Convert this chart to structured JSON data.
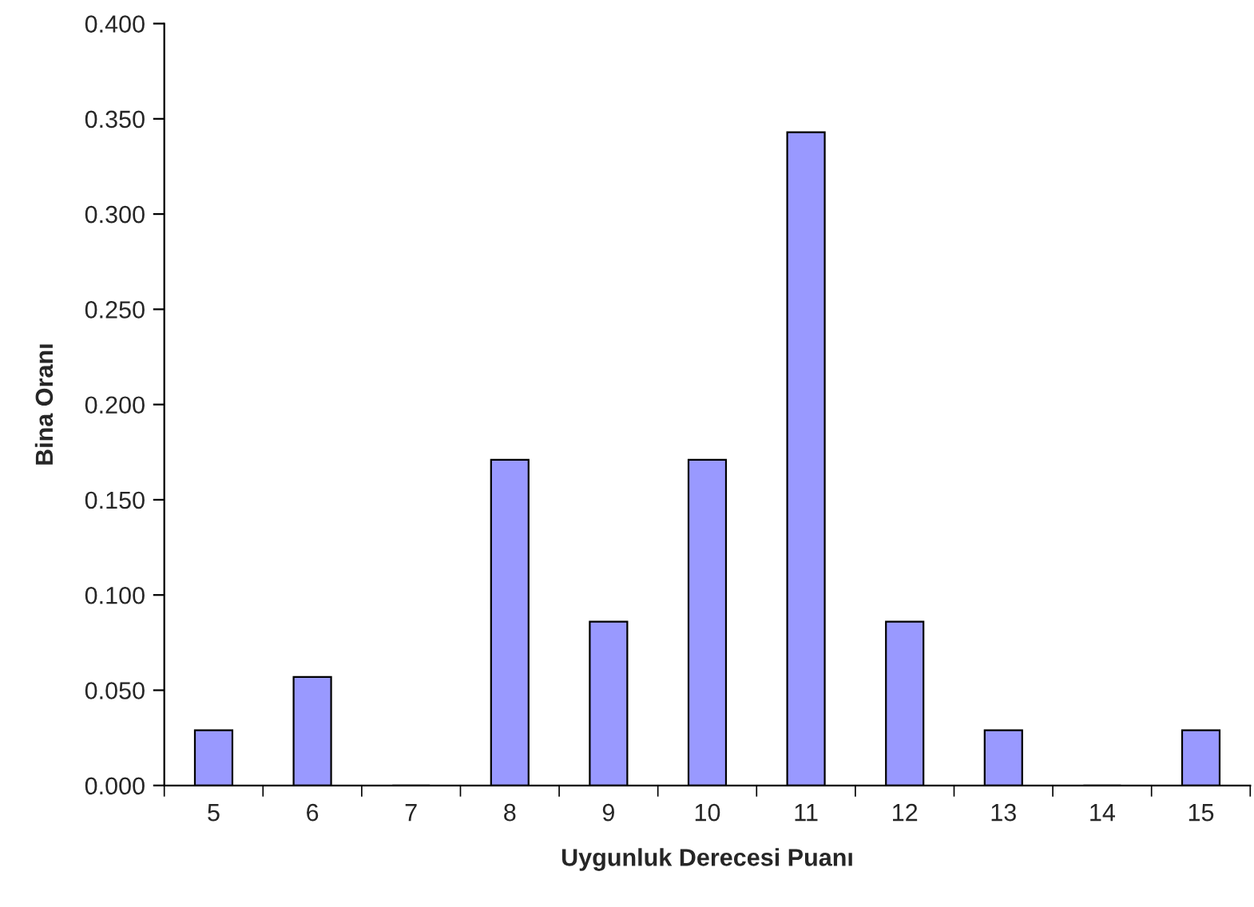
{
  "chart_data": {
    "type": "bar",
    "xlabel": "Uygunluk Derecesi Puanı",
    "ylabel": "Bina Oranı",
    "categories": [
      "5",
      "6",
      "7",
      "8",
      "9",
      "10",
      "11",
      "12",
      "13",
      "14",
      "15"
    ],
    "values": [
      0.029,
      0.057,
      0,
      0.171,
      0.086,
      0.171,
      0.343,
      0.086,
      0.029,
      0,
      0.029
    ],
    "color": "#9999ff",
    "ylim": [
      0,
      0.4
    ],
    "yticks": [
      {
        "value": 0,
        "label": "0.000"
      },
      {
        "value": 0.05,
        "label": "0.050"
      },
      {
        "value": 0.1,
        "label": "0.100"
      },
      {
        "value": 0.15,
        "label": "0.150"
      },
      {
        "value": 0.2,
        "label": "0.200"
      },
      {
        "value": 0.25,
        "label": "0.250"
      },
      {
        "value": 0.3,
        "label": "0.300"
      },
      {
        "value": 0.35,
        "label": "0.350"
      },
      {
        "value": 0.4,
        "label": "0.400"
      }
    ],
    "grid": false,
    "legend": false
  }
}
